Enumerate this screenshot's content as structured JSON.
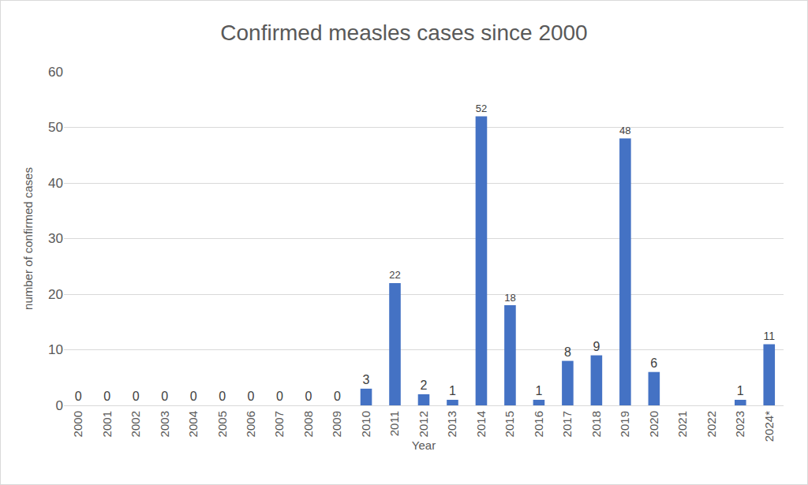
{
  "chart_data": {
    "type": "bar",
    "title": "Confirmed measles cases since 2000",
    "x_label": "Year",
    "y_label": "number of confirmed cases",
    "categories": [
      "2000",
      "2001",
      "2002",
      "2003",
      "2004",
      "2005",
      "2006",
      "2007",
      "2008",
      "2009",
      "2010",
      "2011",
      "2012",
      "2013",
      "2014",
      "2015",
      "2016",
      "2017",
      "2018",
      "2019",
      "2020",
      "2021",
      "2022",
      "2023",
      "2024*"
    ],
    "values": [
      0,
      0,
      0,
      0,
      0,
      0,
      0,
      0,
      0,
      0,
      3,
      22,
      2,
      1,
      52,
      18,
      1,
      8,
      9,
      48,
      6,
      0,
      0,
      1,
      11
    ],
    "value_labels": [
      "0",
      "0",
      "0",
      "0",
      "0",
      "0",
      "0",
      "0",
      "0",
      "0",
      "3",
      "22",
      "2",
      "1",
      "52",
      "18",
      "1",
      "8",
      "9",
      "48",
      "6",
      null,
      null,
      "1",
      "11"
    ],
    "color": "#4472c4",
    "ylim": [
      0,
      60
    ],
    "yticks": [
      0,
      10,
      20,
      30,
      40,
      50,
      60
    ],
    "grid": true,
    "data_labels": true
  }
}
